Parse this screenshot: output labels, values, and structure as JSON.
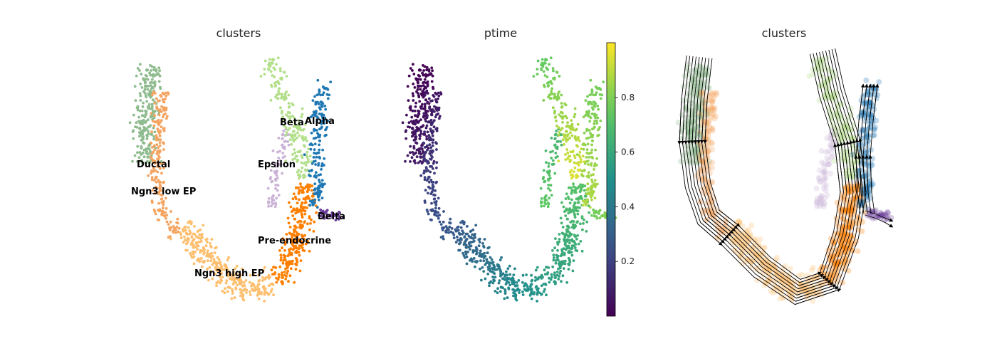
{
  "chart_data": [
    {
      "type": "scatter",
      "title": "clusters",
      "xlabel": "",
      "ylabel": "",
      "grid": false,
      "legend": "on data",
      "series": [
        {
          "name": "Ductal",
          "color": "#8fbc8f"
        },
        {
          "name": "Ngn3 low EP",
          "color": "#f4a460"
        },
        {
          "name": "Ngn3 high EP",
          "color": "#fdbf6f"
        },
        {
          "name": "Pre-endocrine",
          "color": "#ff7f00"
        },
        {
          "name": "Beta",
          "color": "#b2df8a"
        },
        {
          "name": "Alpha",
          "color": "#1f78b4"
        },
        {
          "name": "Delta",
          "color": "#6a3d9a"
        },
        {
          "name": "Epsilon",
          "color": "#cab2d6"
        }
      ]
    },
    {
      "type": "scatter",
      "title": "ptime",
      "xlabel": "",
      "ylabel": "",
      "grid": false,
      "colormap": "viridis",
      "colorbar": {
        "range": [
          0,
          1
        ],
        "ticks": [
          0.2,
          0.4,
          0.6,
          0.8
        ],
        "tick_labels": [
          "0.2",
          "0.4",
          "0.6",
          "0.8"
        ]
      }
    },
    {
      "type": "scatter",
      "title": "clusters",
      "xlabel": "",
      "ylabel": "",
      "grid": false,
      "overlay": "velocity streamlines (black arrows)"
    }
  ]
}
